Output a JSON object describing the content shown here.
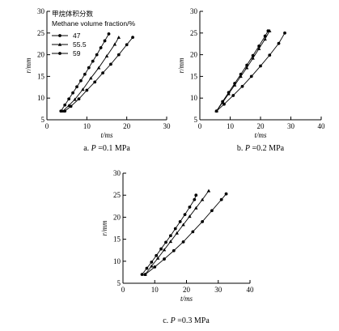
{
  "chart_data": [
    {
      "type": "line",
      "caption_prefix": "a. ",
      "caption_var": "P",
      "caption_value": "=0.1 MPa",
      "xlabel": "t/ms",
      "ylabel": "r/mm",
      "xlim": [
        0,
        30
      ],
      "ylim": [
        5,
        30
      ],
      "xticks": [
        0,
        10,
        20,
        30
      ],
      "yticks": [
        5,
        10,
        15,
        20,
        25,
        30
      ],
      "legend": {
        "title_cn": "甲烷体积分数",
        "title_en": "Methane volume fraction/%",
        "placement": "top-left"
      },
      "series": [
        {
          "name": "47",
          "marker": "dot",
          "x": [
            4.5,
            6,
            8,
            10,
            12,
            14,
            16,
            18,
            20,
            21.5
          ],
          "y": [
            7,
            8.1,
            9.8,
            11.8,
            13.7,
            15.8,
            17.8,
            20.0,
            22.3,
            24.0
          ]
        },
        {
          "name": "55.5",
          "marker": "tri",
          "x": [
            4,
            5.5,
            7,
            9,
            11,
            13,
            15,
            17,
            18
          ],
          "y": [
            7,
            8.3,
            9.7,
            12.0,
            14.6,
            17.0,
            19.7,
            22.4,
            24.0
          ]
        },
        {
          "name": "59",
          "marker": "dot",
          "x": [
            3.5,
            4.5,
            5.5,
            6.5,
            7.5,
            8.5,
            9.5,
            10.5,
            11.5,
            12.5,
            13.5,
            14.5,
            15.5
          ],
          "y": [
            7,
            8.4,
            9.8,
            11.2,
            12.6,
            14.0,
            15.5,
            17.0,
            18.5,
            20.0,
            21.6,
            23.2,
            24.8
          ]
        }
      ]
    },
    {
      "type": "line",
      "caption_prefix": "b. ",
      "caption_var": "P",
      "caption_value": "=0.2 MPa",
      "xlabel": "t/ms",
      "ylabel": "r/mm",
      "xlim": [
        0,
        40
      ],
      "ylim": [
        5,
        30
      ],
      "xticks": [
        0,
        10,
        20,
        30,
        40
      ],
      "yticks": [
        5,
        10,
        15,
        20,
        25,
        30
      ],
      "series": [
        {
          "name": "47",
          "marker": "dot",
          "x": [
            5.5,
            8,
            11,
            14,
            17,
            20,
            23,
            26,
            28
          ],
          "y": [
            7,
            8.6,
            10.6,
            12.7,
            15.0,
            17.4,
            19.9,
            22.6,
            25.0
          ]
        },
        {
          "name": "55.5",
          "marker": "tri",
          "x": [
            5.5,
            7.5,
            9.5,
            11.5,
            13.5,
            15.5,
            17.5,
            19.5,
            21.5,
            23
          ],
          "y": [
            7,
            9.0,
            11.0,
            13.0,
            15.0,
            17.0,
            19.2,
            21.4,
            23.6,
            25.5
          ]
        },
        {
          "name": "59",
          "marker": "dot",
          "x": [
            5.5,
            7.5,
            9.5,
            11.5,
            13.5,
            15.5,
            17.5,
            19.5,
            21.5,
            22.5
          ],
          "y": [
            7,
            9.2,
            11.3,
            13.4,
            15.5,
            17.6,
            19.8,
            22.0,
            24.3,
            25.5
          ]
        }
      ]
    },
    {
      "type": "line",
      "caption_prefix": "c. ",
      "caption_var": "P",
      "caption_value": "=0.3 MPa",
      "xlabel": "t/ms",
      "ylabel": "r/mm",
      "xlim": [
        0,
        40
      ],
      "ylim": [
        5,
        30
      ],
      "xticks": [
        0,
        10,
        20,
        30,
        40
      ],
      "yticks": [
        5,
        10,
        15,
        20,
        25,
        30
      ],
      "series": [
        {
          "name": "47",
          "marker": "dot",
          "x": [
            7,
            10,
            13,
            16,
            19,
            22,
            25,
            28,
            31,
            32.5
          ],
          "y": [
            7,
            8.7,
            10.5,
            12.4,
            14.4,
            16.7,
            19.0,
            21.5,
            24.0,
            25.3
          ]
        },
        {
          "name": "55.5",
          "marker": "tri",
          "x": [
            7,
            9,
            11,
            13,
            15,
            17,
            19,
            21,
            23,
            25,
            27
          ],
          "y": [
            7,
            8.9,
            10.7,
            12.6,
            14.5,
            16.4,
            18.3,
            20.2,
            22.1,
            24.0,
            26.0
          ]
        },
        {
          "name": "59",
          "marker": "dot",
          "x": [
            6,
            7.5,
            9,
            10.5,
            12,
            13.5,
            15,
            16.5,
            18,
            19.5,
            21,
            22.5,
            23
          ],
          "y": [
            7,
            8.4,
            9.8,
            11.3,
            12.8,
            14.3,
            15.8,
            17.4,
            19.0,
            20.6,
            22.3,
            24.0,
            25.0
          ]
        }
      ]
    }
  ]
}
